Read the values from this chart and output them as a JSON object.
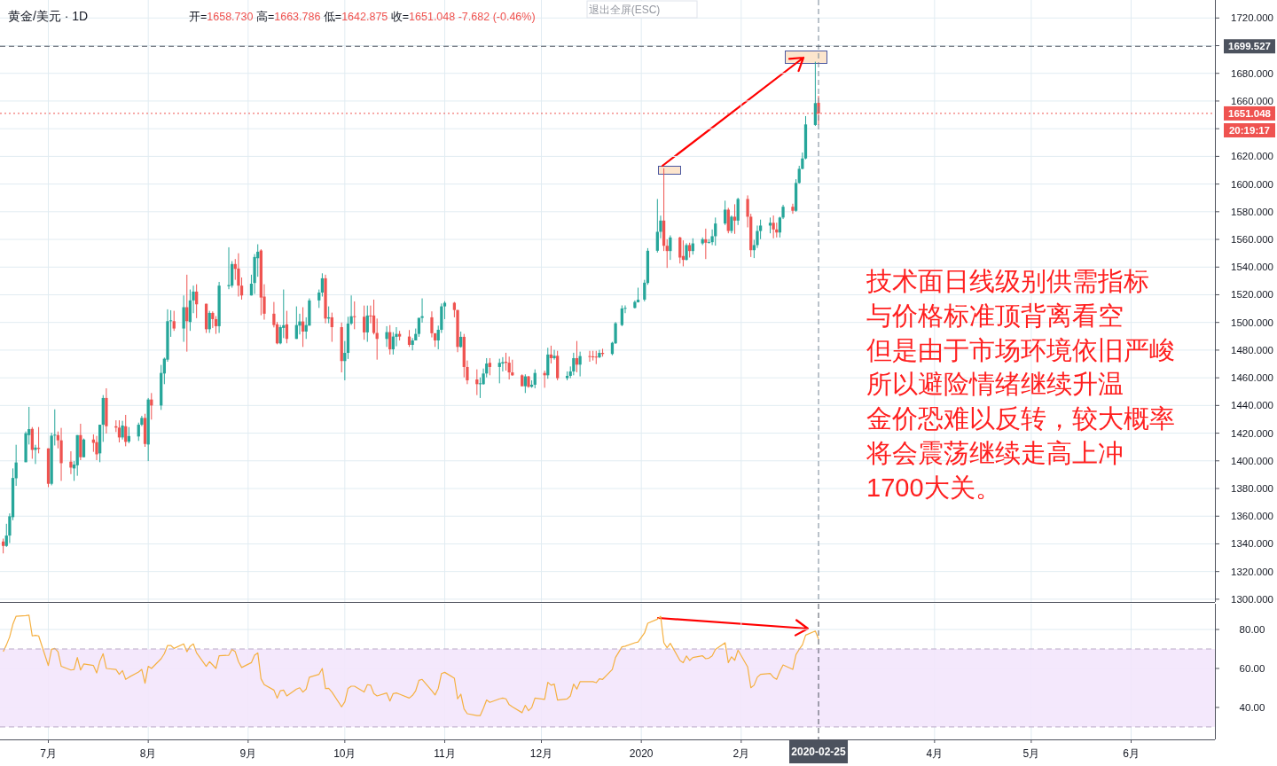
{
  "chart_data": [
    {
      "type": "candlestick",
      "title": "黄金/美元 · 1D",
      "annotations": [
        "开=1658.730 高=1663.786 低=1642.875 收=1651.048 -7.682 (-0.46%)",
        "退出全屏(ESC)",
        "20:19:17",
        "技术面日线级别供需指标",
        "与价格标准顶背离看空",
        "但是由于市场环境依旧严峻",
        "所以避险情绪继续升温",
        "金价恐难以反转，较大概率",
        "将会震荡继续走高上冲",
        "1700大关。"
      ],
      "x": [
        "2019-06-17",
        "2019-06-18",
        "2019-06-19",
        "2019-06-20",
        "2019-06-21",
        "2019-06-24",
        "2019-06-25",
        "2019-06-26",
        "2019-06-27",
        "2019-06-28",
        "2019-07-01",
        "2019-07-02",
        "2019-07-03",
        "2019-07-04",
        "2019-07-05",
        "2019-07-08",
        "2019-07-09",
        "2019-07-10",
        "2019-07-11",
        "2019-07-12",
        "2019-07-15",
        "2019-07-16",
        "2019-07-17",
        "2019-07-18",
        "2019-07-19",
        "2019-07-22",
        "2019-07-23",
        "2019-07-24",
        "2019-07-25",
        "2019-07-26",
        "2019-07-29",
        "2019-07-30",
        "2019-07-31",
        "2019-08-01",
        "2019-08-02",
        "2019-08-05",
        "2019-08-06",
        "2019-08-07",
        "2019-08-08",
        "2019-08-09",
        "2019-08-12",
        "2019-08-13",
        "2019-08-14",
        "2019-08-15",
        "2019-08-16",
        "2019-08-19",
        "2019-08-20",
        "2019-08-21",
        "2019-08-22",
        "2019-08-23",
        "2019-08-26",
        "2019-08-27",
        "2019-08-28",
        "2019-08-29",
        "2019-08-30",
        "2019-09-02",
        "2019-09-03",
        "2019-09-04",
        "2019-09-05",
        "2019-09-06",
        "2019-09-09",
        "2019-09-10",
        "2019-09-11",
        "2019-09-12",
        "2019-09-13",
        "2019-09-16",
        "2019-09-17",
        "2019-09-18",
        "2019-09-19",
        "2019-09-20",
        "2019-09-23",
        "2019-09-24",
        "2019-09-25",
        "2019-09-26",
        "2019-09-27",
        "2019-09-30",
        "2019-10-01",
        "2019-10-02",
        "2019-10-03",
        "2019-10-04",
        "2019-10-07",
        "2019-10-08",
        "2019-10-09",
        "2019-10-10",
        "2019-10-11",
        "2019-10-14",
        "2019-10-15",
        "2019-10-16",
        "2019-10-17",
        "2019-10-18",
        "2019-10-21",
        "2019-10-22",
        "2019-10-23",
        "2019-10-24",
        "2019-10-25",
        "2019-10-28",
        "2019-10-29",
        "2019-10-30",
        "2019-10-31",
        "2019-11-01",
        "2019-11-04",
        "2019-11-05",
        "2019-11-06",
        "2019-11-07",
        "2019-11-08",
        "2019-11-11",
        "2019-11-12",
        "2019-11-13",
        "2019-11-14",
        "2019-11-15",
        "2019-11-18",
        "2019-11-19",
        "2019-11-20",
        "2019-11-21",
        "2019-11-22",
        "2019-11-25",
        "2019-11-26",
        "2019-11-27",
        "2019-11-28",
        "2019-11-29",
        "2019-12-02",
        "2019-12-03",
        "2019-12-04",
        "2019-12-05",
        "2019-12-06",
        "2019-12-09",
        "2019-12-10",
        "2019-12-11",
        "2019-12-12",
        "2019-12-13",
        "2019-12-16",
        "2019-12-17",
        "2019-12-18",
        "2019-12-19",
        "2019-12-20",
        "2019-12-23",
        "2019-12-24",
        "2019-12-26",
        "2019-12-27",
        "2019-12-30",
        "2019-12-31",
        "2020-01-02",
        "2020-01-03",
        "2020-01-06",
        "2020-01-07",
        "2020-01-08",
        "2020-01-09",
        "2020-01-10",
        "2020-01-13",
        "2020-01-14",
        "2020-01-15",
        "2020-01-16",
        "2020-01-17",
        "2020-01-20",
        "2020-01-21",
        "2020-01-22",
        "2020-01-23",
        "2020-01-24",
        "2020-01-27",
        "2020-01-28",
        "2020-01-29",
        "2020-01-30",
        "2020-01-31",
        "2020-02-03",
        "2020-02-04",
        "2020-02-05",
        "2020-02-06",
        "2020-02-07",
        "2020-02-10",
        "2020-02-11",
        "2020-02-12",
        "2020-02-13",
        "2020-02-14",
        "2020-02-17",
        "2020-02-18",
        "2020-02-19",
        "2020-02-20",
        "2020-02-21",
        "2020-02-24",
        "2020-02-25"
      ],
      "ohlc": [
        [
          1341.7,
          1343.8,
          1333.1,
          1338.5
        ],
        [
          1338.5,
          1354.5,
          1337.8,
          1346.0
        ],
        [
          1346.0,
          1362.0,
          1340.6,
          1359.9
        ],
        [
          1359.3,
          1394.5,
          1357.1,
          1387.6
        ],
        [
          1387.4,
          1411.6,
          1381.9,
          1398.8
        ],
        [
          1399.0,
          1421.2,
          1399.0,
          1419.9
        ],
        [
          1418.6,
          1439.0,
          1411.8,
          1422.9
        ],
        [
          1423.1,
          1424.4,
          1401.5,
          1407.9
        ],
        [
          1407.9,
          1411.6,
          1397.7,
          1409.6
        ],
        [
          1409.4,
          1424.4,
          1405.4,
          1408.6
        ],
        [
          1409.0,
          1409.0,
          1381.0,
          1383.4
        ],
        [
          1383.4,
          1420.3,
          1382.3,
          1418.2
        ],
        [
          1418.6,
          1437.2,
          1411.1,
          1418.9
        ],
        [
          1418.6,
          1421.2,
          1409.0,
          1414.8
        ],
        [
          1414.8,
          1423.8,
          1385.5,
          1398.3
        ],
        [
          1399.4,
          1406.9,
          1390.4,
          1395.1
        ],
        [
          1394.5,
          1399.8,
          1385.5,
          1397.3
        ],
        [
          1396.8,
          1418.6,
          1389.2,
          1418.6
        ],
        [
          1418.6,
          1426.8,
          1400.5,
          1402.6
        ],
        [
          1402.6,
          1416.1,
          1402.6,
          1415.4
        ],
        [
          1415.4,
          1419.1,
          1406.5,
          1413.0
        ],
        [
          1413.5,
          1418.0,
          1400.5,
          1404.7
        ],
        [
          1405.4,
          1426.1,
          1399.0,
          1426.1
        ],
        [
          1426.1,
          1447.5,
          1413.7,
          1445.4
        ],
        [
          1445.4,
          1452.4,
          1419.7,
          1425.0
        ],
        [
          1425.0,
          1429.3,
          1420.8,
          1424.0
        ],
        [
          1424.0,
          1429.3,
          1413.3,
          1416.9
        ],
        [
          1416.9,
          1428.9,
          1415.4,
          1425.5
        ],
        [
          1425.0,
          1433.2,
          1410.5,
          1413.7
        ],
        [
          1413.9,
          1424.4,
          1412.7,
          1417.9
        ],
        [
          1417.6,
          1427.6,
          1414.4,
          1426.1
        ],
        [
          1426.1,
          1432.5,
          1425.1,
          1431.0
        ],
        [
          1431.0,
          1434.0,
          1410.1,
          1412.2
        ],
        [
          1411.8,
          1445.4,
          1399.8,
          1444.3
        ],
        [
          1444.3,
          1449.0,
          1429.8,
          1440.0
        ],
        [
          1440.0,
          1469.3,
          1436.8,
          1463.5
        ],
        [
          1463.1,
          1474.6,
          1455.4,
          1473.8
        ],
        [
          1473.1,
          1509.5,
          1471.6,
          1500.9
        ],
        [
          1500.9,
          1508.8,
          1489.6,
          1501.5
        ],
        [
          1500.9,
          1508.4,
          1493.9,
          1495.6
        ],
        [
          1495.6,
          1519.5,
          1486.0,
          1511.0
        ],
        [
          1511.0,
          1534.5,
          1478.9,
          1500.9
        ],
        [
          1500.3,
          1523.8,
          1493.9,
          1515.9
        ],
        [
          1515.9,
          1526.6,
          1506.7,
          1522.3
        ],
        [
          1522.3,
          1527.6,
          1503.1,
          1513.1
        ],
        [
          1513.5,
          1513.5,
          1492.4,
          1495.1
        ],
        [
          1495.1,
          1508.4,
          1492.4,
          1506.9
        ],
        [
          1506.9,
          1508.0,
          1496.0,
          1502.4
        ],
        [
          1502.4,
          1504.6,
          1491.7,
          1497.3
        ],
        [
          1497.3,
          1529.3,
          1492.4,
          1526.6
        ],
        [
          1526.2,
          1554.3,
          1524.0,
          1527.0
        ],
        [
          1526.6,
          1544.3,
          1525.1,
          1542.2
        ],
        [
          1542.2,
          1545.8,
          1530.8,
          1538.7
        ],
        [
          1539.0,
          1550.0,
          1518.7,
          1526.6
        ],
        [
          1526.6,
          1532.5,
          1516.5,
          1519.5
        ],
        [
          1519.5,
          1534.5,
          1519.5,
          1528.0
        ],
        [
          1528.5,
          1549.4,
          1520.6,
          1547.3
        ],
        [
          1546.4,
          1556.5,
          1533.0,
          1551.1
        ],
        [
          1552.0,
          1552.9,
          1505.2,
          1518.0
        ],
        [
          1518.7,
          1527.6,
          1502.0,
          1506.3
        ],
        [
          1506.3,
          1514.8,
          1496.4,
          1498.1
        ],
        [
          1498.6,
          1500.3,
          1484.2,
          1484.9
        ],
        [
          1484.9,
          1498.1,
          1484.2,
          1496.6
        ],
        [
          1496.0,
          1523.8,
          1488.7,
          1498.0
        ],
        [
          1498.6,
          1508.4,
          1484.9,
          1488.1
        ],
        [
          1488.1,
          1511.6,
          1488.1,
          1498.1
        ],
        [
          1497.7,
          1506.3,
          1491.3,
          1500.7
        ],
        [
          1500.7,
          1511.0,
          1482.3,
          1493.4
        ],
        [
          1493.4,
          1503.7,
          1488.1,
          1498.1
        ],
        [
          1497.7,
          1517.4,
          1497.7,
          1515.9
        ],
        [
          1515.9,
          1523.8,
          1510.5,
          1521.6
        ],
        [
          1521.6,
          1535.5,
          1518.7,
          1531.9
        ],
        [
          1531.9,
          1534.5,
          1499.4,
          1502.8
        ],
        [
          1502.8,
          1511.6,
          1499.4,
          1503.7
        ],
        [
          1503.7,
          1507.1,
          1486.0,
          1496.6
        ],
        [
          1496.6,
          1499.9,
          1463.9,
          1472.1
        ],
        [
          1472.1,
          1486.6,
          1458.2,
          1478.0
        ],
        [
          1478.0,
          1504.1,
          1473.6,
          1499.2
        ],
        [
          1499.2,
          1519.5,
          1498.1,
          1504.5
        ],
        [
          1504.5,
          1515.2,
          1495.1,
          1504.3
        ],
        [
          1504.1,
          1512.2,
          1487.5,
          1492.8
        ],
        [
          1492.8,
          1512.2,
          1486.0,
          1505.0
        ],
        [
          1505.0,
          1512.2,
          1499.4,
          1504.8
        ],
        [
          1505.0,
          1516.5,
          1491.3,
          1492.4
        ],
        [
          1492.4,
          1502.8,
          1473.1,
          1488.1
        ],
        [
          1488.1,
          1497.3,
          1482.3,
          1493.0
        ],
        [
          1493.0,
          1498.1,
          1476.8,
          1480.6
        ],
        [
          1480.6,
          1493.0,
          1476.8,
          1489.8
        ],
        [
          1489.6,
          1496.6,
          1482.8,
          1491.7
        ],
        [
          1491.7,
          1493.9,
          1487.0,
          1489.8
        ],
        [
          1489.8,
          1494.5,
          1482.3,
          1483.8
        ],
        [
          1483.8,
          1488.7,
          1479.8,
          1487.0
        ],
        [
          1487.0,
          1495.6,
          1487.0,
          1491.7
        ],
        [
          1491.7,
          1503.3,
          1489.6,
          1503.3
        ],
        [
          1503.3,
          1517.4,
          1499.9,
          1504.5
        ],
        [
          1503.7,
          1508.0,
          1489.2,
          1492.2
        ],
        [
          1492.2,
          1492.2,
          1482.3,
          1487.0
        ],
        [
          1487.0,
          1497.7,
          1480.6,
          1494.7
        ],
        [
          1494.7,
          1513.7,
          1492.4,
          1511.6
        ],
        [
          1511.6,
          1515.4,
          1502.4,
          1514.2
        ],
        [
          1514.2,
          1514.8,
          1503.7,
          1509.0
        ],
        [
          1509.0,
          1509.0,
          1478.5,
          1482.3
        ],
        [
          1482.3,
          1493.4,
          1481.7,
          1489.6
        ],
        [
          1489.6,
          1491.7,
          1460.3,
          1467.8
        ],
        [
          1467.8,
          1472.5,
          1455.4,
          1458.2
        ],
        [
          1458.8,
          1466.1,
          1447.5,
          1455.4
        ],
        [
          1455.4,
          1460.3,
          1445.4,
          1456.0
        ],
        [
          1455.4,
          1466.7,
          1455.0,
          1463.1
        ],
        [
          1463.1,
          1474.2,
          1460.3,
          1470.3
        ],
        [
          1470.8,
          1474.2,
          1461.8,
          1467.8
        ],
        [
          1467.8,
          1473.8,
          1456.0,
          1470.8
        ],
        [
          1470.3,
          1474.9,
          1464.6,
          1471.3
        ],
        [
          1471.6,
          1478.1,
          1465.2,
          1470.8
        ],
        [
          1470.9,
          1475.3,
          1458.8,
          1463.9
        ],
        [
          1463.9,
          1473.1,
          1461.4,
          1461.8
        ],
        [
          1461.8,
          1462.5,
          1453.9,
          1453.9
        ],
        [
          1453.9,
          1462.5,
          1449.0,
          1461.0
        ],
        [
          1461.0,
          1461.4,
          1452.8,
          1453.5
        ],
        [
          1453.5,
          1458.2,
          1452.8,
          1455.0
        ],
        [
          1455.0,
          1466.1,
          1452.4,
          1463.5
        ],
        [
          1463.5,
          1465.2,
          1452.8,
          1461.8
        ],
        [
          1461.8,
          1481.7,
          1459.3,
          1476.8
        ],
        [
          1476.8,
          1483.2,
          1470.4,
          1474.2
        ],
        [
          1474.2,
          1480.2,
          1473.1,
          1475.9
        ],
        [
          1475.9,
          1479.5,
          1458.2,
          1459.7
        ],
        [
          1459.7,
          1464.6,
          1458.2,
          1461.4
        ],
        [
          1461.4,
          1468.2,
          1459.7,
          1464.6
        ],
        [
          1464.6,
          1478.1,
          1461.8,
          1474.2
        ],
        [
          1474.2,
          1486.6,
          1464.0,
          1469.5
        ],
        [
          1469.5,
          1478.9,
          1461.0,
          1475.7
        ],
        [
          1475.7,
          1479.5,
          1471.6,
          1475.5
        ],
        [
          1475.5,
          1479.5,
          1472.5,
          1475.3
        ],
        [
          1475.3,
          1479.5,
          1469.9,
          1475.0
        ],
        [
          1474.8,
          1480.2,
          1474.2,
          1478.0
        ],
        [
          1478.0,
          1481.0,
          1475.3,
          1477.2
        ],
        [
          1477.2,
          1486.0,
          1476.3,
          1485.3
        ],
        [
          1484.9,
          1500.3,
          1484.5,
          1499.4
        ],
        [
          1498.1,
          1512.3,
          1497.3,
          1510.1
        ],
        [
          1510.1,
          1512.3,
          1506.7,
          1510.5
        ],
        [
          1510.5,
          1515.9,
          1510.1,
          1514.8
        ],
        [
          1514.6,
          1525.1,
          1514.4,
          1516.4
        ],
        [
          1516.5,
          1530.8,
          1515.2,
          1528.7
        ],
        [
          1528.5,
          1553.7,
          1527.2,
          1551.8
        ],
        [
          1551.8,
          1589.2,
          1550.5,
          1565.5
        ],
        [
          1565.5,
          1577.2,
          1560.8,
          1573.6
        ],
        [
          1573.6,
          1611.4,
          1551.6,
          1555.4
        ],
        [
          1555.4,
          1560.1,
          1539.4,
          1551.6
        ],
        [
          1551.6,
          1562.9,
          1545.2,
          1561.4
        ],
        [
          1561.4,
          1561.9,
          1542.6,
          1546.9
        ],
        [
          1548.0,
          1559.3,
          1540.5,
          1545.2
        ],
        [
          1545.2,
          1557.2,
          1544.8,
          1555.9
        ],
        [
          1555.9,
          1557.6,
          1546.9,
          1551.6
        ],
        [
          1551.6,
          1560.8,
          1549.0,
          1557.1
        ],
        [
          1557.1,
          1561.4,
          1555.9,
          1560.1
        ],
        [
          1560.1,
          1567.8,
          1545.8,
          1557.6
        ],
        [
          1557.6,
          1560.2,
          1557.2,
          1558.0
        ],
        [
          1558.0,
          1567.2,
          1555.9,
          1562.3
        ],
        [
          1562.3,
          1575.8,
          1555.5,
          1571.5
        ],
        [
          1571.5,
          1588.0,
          1570.4,
          1581.5
        ],
        [
          1581.5,
          1582.8,
          1564.4,
          1566.1
        ],
        [
          1566.1,
          1577.3,
          1564.4,
          1576.4
        ],
        [
          1576.4,
          1585.4,
          1564.0,
          1573.6
        ],
        [
          1573.6,
          1590.1,
          1570.4,
          1589.2
        ],
        [
          1589.2,
          1591.8,
          1568.7,
          1576.4
        ],
        [
          1576.4,
          1578.5,
          1547.3,
          1552.2
        ],
        [
          1552.2,
          1559.7,
          1546.5,
          1555.9
        ],
        [
          1555.9,
          1570.0,
          1553.8,
          1566.1
        ],
        [
          1566.1,
          1574.3,
          1560.2,
          1570.0
        ],
        [
          1570.0,
          1575.8,
          1564.4,
          1572.0
        ],
        [
          1572.0,
          1577.3,
          1560.8,
          1567.2
        ],
        [
          1567.2,
          1572.1,
          1561.4,
          1565.0
        ],
        [
          1565.0,
          1576.4,
          1561.4,
          1575.8
        ],
        [
          1575.8,
          1585.0,
          1574.7,
          1583.6
        ],
        [
          1583.6,
          1585.8,
          1578.5,
          1580.7
        ],
        [
          1580.7,
          1603.5,
          1580.0,
          1600.8
        ],
        [
          1600.8,
          1613.2,
          1600.3,
          1611.0
        ],
        [
          1611.0,
          1622.8,
          1610.6,
          1618.5
        ],
        [
          1618.5,
          1649.1,
          1617.9,
          1643.1
        ],
        [
          1642.7,
          1688.4,
          1642.0,
          1658.5
        ],
        [
          1658.73,
          1663.786,
          1642.875,
          1651.048
        ]
      ],
      "xlim": [
        "2019-06-16",
        "2020-06-27"
      ],
      "xticks": [
        {
          "value": "2019-07-01",
          "label": null
        },
        {
          "value": "2019-08-01",
          "label": null
        },
        {
          "value": "2019-09-01",
          "label": null
        },
        {
          "value": "2019-10-01",
          "label": null
        },
        {
          "value": "2019-11-01",
          "label": null
        },
        {
          "value": "2019-12-01",
          "label": null
        },
        {
          "value": "2020-01-01",
          "label": null
        },
        {
          "value": "2020-02-01",
          "label": null
        },
        {
          "value": "2020-04-01",
          "label": null
        },
        {
          "value": "2020-05-01",
          "label": null
        },
        {
          "value": "2020-06-01",
          "label": null
        }
      ],
      "ylim": [
        1298,
        1733
      ],
      "yticks": [
        {
          "value": 1300,
          "label": "1300.000"
        },
        {
          "value": 1320,
          "label": "1320.000"
        },
        {
          "value": 1340,
          "label": "1340.000"
        },
        {
          "value": 1360,
          "label": "1360.000"
        },
        {
          "value": 1380,
          "label": "1380.000"
        },
        {
          "value": 1400,
          "label": "1400.000"
        },
        {
          "value": 1420,
          "label": "1420.000"
        },
        {
          "value": 1440,
          "label": "1440.000"
        },
        {
          "value": 1460,
          "label": "1460.000"
        },
        {
          "value": 1480,
          "label": "1480.000"
        },
        {
          "value": 1500,
          "label": "1500.000"
        },
        {
          "value": 1520,
          "label": "1520.000"
        },
        {
          "value": 1540,
          "label": "1540.000"
        },
        {
          "value": 1560,
          "label": "1560.000"
        },
        {
          "value": 1580,
          "label": "1580.000"
        },
        {
          "value": 1600,
          "label": "1600.000"
        },
        {
          "value": 1620,
          "label": "1620.000"
        },
        {
          "value": 1640,
          "label": null
        },
        {
          "value": 1660,
          "label": "1660.000"
        },
        {
          "value": 1680,
          "label": "1680.000"
        },
        {
          "value": 1700,
          "label": null
        },
        {
          "value": 1720,
          "label": "1720.000"
        }
      ],
      "grid": true,
      "tick_labels": "y",
      "ref_lines": [
        {
          "axis": "x",
          "value": "2020-02-25",
          "color": "#758696",
          "line_style": "dashed"
        },
        {
          "axis": "y",
          "value": 1699.527,
          "label": "1699.527",
          "color": "#4c525e",
          "line_style": "dashed"
        },
        {
          "axis": "y",
          "value": 1651.048,
          "label": "1651.048",
          "color": "#ef5350",
          "line_style": "dotted"
        }
      ]
    },
    {
      "type": "line",
      "color": "#f5b041",
      "x": [
        "2019-06-17",
        "2019-06-18",
        "2019-06-19",
        "2019-06-20",
        "2019-06-21",
        "2019-06-24",
        "2019-06-25",
        "2019-06-26",
        "2019-06-27",
        "2019-06-28",
        "2019-07-01",
        "2019-07-02",
        "2019-07-03",
        "2019-07-04",
        "2019-07-05",
        "2019-07-08",
        "2019-07-09",
        "2019-07-10",
        "2019-07-11",
        "2019-07-12",
        "2019-07-15",
        "2019-07-16",
        "2019-07-17",
        "2019-07-18",
        "2019-07-19",
        "2019-07-22",
        "2019-07-23",
        "2019-07-24",
        "2019-07-25",
        "2019-07-26",
        "2019-07-29",
        "2019-07-30",
        "2019-07-31",
        "2019-08-01",
        "2019-08-02",
        "2019-08-05",
        "2019-08-06",
        "2019-08-07",
        "2019-08-08",
        "2019-08-09",
        "2019-08-12",
        "2019-08-13",
        "2019-08-14",
        "2019-08-15",
        "2019-08-16",
        "2019-08-19",
        "2019-08-20",
        "2019-08-21",
        "2019-08-22",
        "2019-08-23",
        "2019-08-26",
        "2019-08-27",
        "2019-08-28",
        "2019-08-29",
        "2019-08-30",
        "2019-09-02",
        "2019-09-03",
        "2019-09-04",
        "2019-09-05",
        "2019-09-06",
        "2019-09-09",
        "2019-09-10",
        "2019-09-11",
        "2019-09-12",
        "2019-09-13",
        "2019-09-16",
        "2019-09-17",
        "2019-09-18",
        "2019-09-19",
        "2019-09-20",
        "2019-09-23",
        "2019-09-24",
        "2019-09-25",
        "2019-09-26",
        "2019-09-27",
        "2019-09-30",
        "2019-10-01",
        "2019-10-02",
        "2019-10-03",
        "2019-10-04",
        "2019-10-07",
        "2019-10-08",
        "2019-10-09",
        "2019-10-10",
        "2019-10-11",
        "2019-10-14",
        "2019-10-15",
        "2019-10-16",
        "2019-10-17",
        "2019-10-18",
        "2019-10-21",
        "2019-10-22",
        "2019-10-23",
        "2019-10-24",
        "2019-10-25",
        "2019-10-28",
        "2019-10-29",
        "2019-10-30",
        "2019-10-31",
        "2019-11-01",
        "2019-11-04",
        "2019-11-05",
        "2019-11-06",
        "2019-11-07",
        "2019-11-08",
        "2019-11-11",
        "2019-11-12",
        "2019-11-13",
        "2019-11-14",
        "2019-11-15",
        "2019-11-18",
        "2019-11-19",
        "2019-11-20",
        "2019-11-21",
        "2019-11-22",
        "2019-11-25",
        "2019-11-26",
        "2019-11-27",
        "2019-11-28",
        "2019-11-29",
        "2019-12-02",
        "2019-12-03",
        "2019-12-04",
        "2019-12-05",
        "2019-12-06",
        "2019-12-09",
        "2019-12-10",
        "2019-12-11",
        "2019-12-12",
        "2019-12-13",
        "2019-12-16",
        "2019-12-17",
        "2019-12-18",
        "2019-12-19",
        "2019-12-20",
        "2019-12-23",
        "2019-12-24",
        "2019-12-26",
        "2019-12-27",
        "2019-12-30",
        "2019-12-31",
        "2020-01-02",
        "2020-01-03",
        "2020-01-06",
        "2020-01-07",
        "2020-01-08",
        "2020-01-09",
        "2020-01-10",
        "2020-01-13",
        "2020-01-14",
        "2020-01-15",
        "2020-01-16",
        "2020-01-17",
        "2020-01-20",
        "2020-01-21",
        "2020-01-22",
        "2020-01-23",
        "2020-01-24",
        "2020-01-27",
        "2020-01-28",
        "2020-01-29",
        "2020-01-30",
        "2020-01-31",
        "2020-02-03",
        "2020-02-04",
        "2020-02-05",
        "2020-02-06",
        "2020-02-07",
        "2020-02-10",
        "2020-02-11",
        "2020-02-12",
        "2020-02-13",
        "2020-02-14",
        "2020-02-17",
        "2020-02-18",
        "2020-02-19",
        "2020-02-20",
        "2020-02-21",
        "2020-02-24",
        "2020-02-25"
      ],
      "values": [
        68.6,
        72.1,
        76.2,
        82.7,
        86.8,
        87.1,
        87.3,
        76.7,
        77.0,
        76.7,
        61.5,
        69.8,
        70.3,
        68.6,
        61.1,
        59.2,
        59.5,
        65.6,
        59.2,
        62.3,
        61.5,
        57.7,
        63.8,
        67.6,
        60.0,
        59.5,
        57.0,
        58.9,
        54.4,
        55.5,
        58.2,
        59.5,
        52.4,
        61.1,
        60.0,
        65.0,
        67.6,
        71.8,
        71.8,
        70.3,
        72.6,
        68.6,
        71.4,
        72.6,
        68.0,
        61.1,
        63.5,
        61.8,
        60.0,
        66.5,
        66.8,
        69.8,
        68.6,
        63.5,
        60.5,
        63.0,
        66.8,
        68.0,
        54.7,
        51.7,
        48.9,
        44.8,
        48.6,
        48.9,
        45.9,
        49.4,
        50.1,
        47.9,
        49.4,
        55.5,
        57.0,
        60.0,
        49.7,
        49.8,
        47.9,
        40.3,
        42.9,
        49.8,
        50.9,
        50.9,
        47.9,
        51.7,
        51.4,
        47.1,
        45.9,
        47.4,
        43.3,
        47.1,
        47.4,
        46.8,
        44.8,
        46.2,
        48.6,
        53.9,
        54.4,
        48.6,
        46.4,
        49.8,
        57.4,
        58.0,
        55.0,
        44.4,
        46.8,
        39.2,
        36.8,
        35.8,
        35.8,
        39.5,
        43.8,
        42.6,
        44.4,
        44.8,
        44.4,
        41.4,
        40.3,
        37.3,
        41.1,
        38.3,
        39.9,
        44.8,
        44.1,
        52.9,
        51.4,
        52.0,
        43.8,
        44.4,
        45.9,
        52.0,
        49.4,
        53.2,
        53.2,
        53.2,
        52.7,
        54.7,
        54.4,
        59.5,
        65.6,
        71.1,
        71.4,
        73.2,
        73.6,
        78.2,
        83.2,
        85.3,
        86.8,
        73.2,
        70.6,
        72.9,
        64.1,
        63.0,
        66.4,
        64.1,
        65.6,
        66.5,
        65.0,
        65.3,
        66.5,
        69.8,
        73.2,
        63.0,
        66.0,
        64.2,
        69.4,
        60.8,
        50.1,
        51.4,
        55.5,
        57.0,
        57.4,
        55.5,
        54.4,
        58.5,
        61.8,
        59.5,
        67.1,
        69.8,
        72.1,
        77.1,
        79.2,
        75.1
      ],
      "xlim": [
        "2019-06-16",
        "2020-06-27"
      ],
      "xticks": [
        {
          "value": "2019-07-01",
          "label": "7月"
        },
        {
          "value": "2019-08-01",
          "label": "8月"
        },
        {
          "value": "2019-09-01",
          "label": "9月"
        },
        {
          "value": "2019-10-01",
          "label": "10月"
        },
        {
          "value": "2019-11-01",
          "label": "11月"
        },
        {
          "value": "2019-12-01",
          "label": "12月"
        },
        {
          "value": "2020-01-01",
          "label": "2020"
        },
        {
          "value": "2020-02-01",
          "label": "2月"
        },
        {
          "value": "2020-04-01",
          "label": "4月"
        },
        {
          "value": "2020-05-01",
          "label": "5月"
        },
        {
          "value": "2020-06-01",
          "label": "6月"
        }
      ],
      "ylim": [
        23.6,
        93.2
      ],
      "yticks": [
        {
          "value": 40,
          "label": "40.00"
        },
        {
          "value": 60,
          "label": "60.00"
        },
        {
          "value": 80,
          "label": "80.00"
        }
      ],
      "grid": true,
      "bands": [
        {
          "axis": "y",
          "from": 30,
          "to": 70,
          "color": "#f3e5fc"
        }
      ],
      "ref_lines": [
        {
          "axis": "x",
          "value": "2020-02-25",
          "label": "2020-02-25",
          "color": "#4c525e",
          "line_style": "dashed"
        },
        {
          "axis": "y",
          "value": 70,
          "color": "#b9a9c6",
          "line_style": "dashed"
        },
        {
          "axis": "y",
          "value": 30,
          "color": "#b9a9c6",
          "line_style": "dashed"
        }
      ]
    }
  ]
}
